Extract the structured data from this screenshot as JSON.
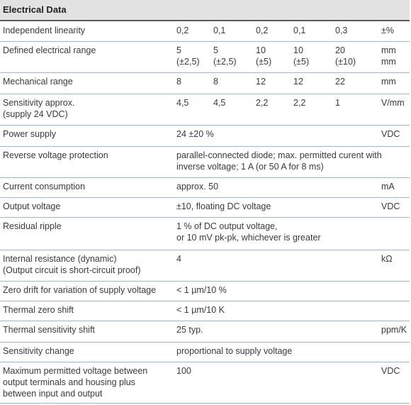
{
  "title": "Electrical Data",
  "rows": [
    {
      "label": "Independent linearity",
      "values": [
        "0,2",
        "0,1",
        "0,2",
        "0,1",
        "0,3"
      ],
      "unit": "±%"
    },
    {
      "label": "Defined electrical range",
      "values": [
        "5\n(±2,5)",
        "5\n(±2,5)",
        "10\n(±5)",
        "10\n(±5)",
        "20\n(±10)"
      ],
      "unit": "mm\nmm"
    },
    {
      "label": "Mechanical range",
      "values": [
        "8",
        "8",
        "12",
        "12",
        "22"
      ],
      "unit": "mm"
    },
    {
      "label": "Sensitivity approx.\n(supply 24 VDC)",
      "values": [
        "4,5",
        "4,5",
        "2,2",
        "2,2",
        "1"
      ],
      "unit": "V/mm"
    },
    {
      "label": "Power supply",
      "text": "24 ±20 %",
      "unit": "VDC"
    },
    {
      "label": "Reverse voltage protection",
      "text": "parallel-connected diode; max. permitted curent with\ninverse voltage; 1 A (or 50 A for 8 ms)",
      "unit": ""
    },
    {
      "label": "Current consumption",
      "text": "approx. 50",
      "unit": "mA"
    },
    {
      "label": "Output voltage",
      "text": "±10, floating DC voltage",
      "unit": "VDC"
    },
    {
      "label": "Residual ripple",
      "text": "1 % of DC output voltage,\nor 10 mV pk-pk, whichever is greater",
      "unit": ""
    },
    {
      "label": "Internal resistance (dynamic)\n(Output circuit is short-circuit proof)",
      "text": "4",
      "unit": "kΩ"
    },
    {
      "label": "Zero drift for variation of supply voltage",
      "text": "< 1 µm/10 %",
      "unit": ""
    },
    {
      "label": "Thermal zero shift",
      "text": "< 1 µm/10 K",
      "unit": ""
    },
    {
      "label": "Thermal sensitivity shift",
      "text": "25 typ.",
      "unit": "ppm/K"
    },
    {
      "label": "Sensitivity change",
      "text": "proportional to supply voltage",
      "unit": ""
    },
    {
      "label": "Maximum permitted voltage between\noutput terminals and housing plus\nbetween input and output",
      "text": "100",
      "unit": "VDC"
    }
  ]
}
